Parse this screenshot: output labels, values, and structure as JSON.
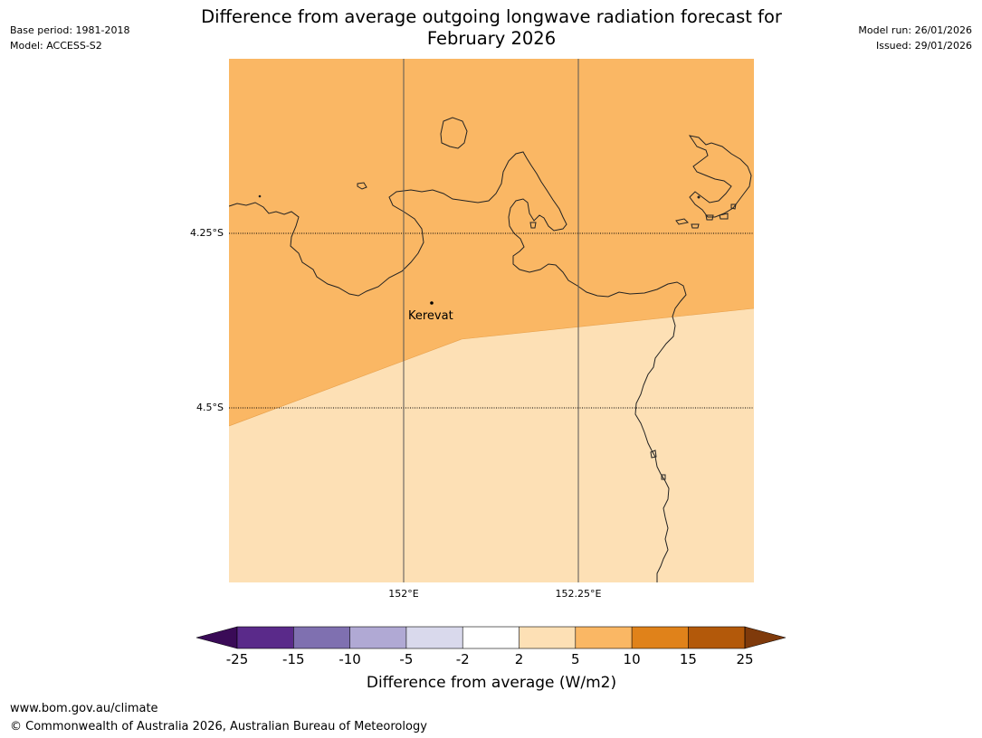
{
  "meta": {
    "base_period": "Base period: 1981-2018",
    "model": "Model: ACCESS-S2",
    "model_run": "Model run: 26/01/2026",
    "issued": "Issued: 29/01/2026"
  },
  "title": {
    "line1": "Difference from average outgoing longwave radiation forecast for",
    "line2": "February 2026"
  },
  "map": {
    "lat_labels": [
      "4.25°S",
      "4.5°S"
    ],
    "lon_labels": [
      "152°E",
      "152.25°E"
    ],
    "place": "Kerevat",
    "colors": {
      "band_10_high": "#fab764",
      "band_2_5": "#fde0b5",
      "coast": "#222222"
    }
  },
  "colorbar": {
    "title": "Difference from average (W/m2)",
    "ticks": [
      "-25",
      "-15",
      "-10",
      "-5",
      "-2",
      "2",
      "5",
      "10",
      "15",
      "25"
    ],
    "colors": [
      "#3a0b57",
      "#5a2a8a",
      "#7f70b0",
      "#b0a9d4",
      "#d9d9ec",
      "#ffffff",
      "#fde0b5",
      "#fab764",
      "#e0821a",
      "#b3590a",
      "#7f3a0b"
    ]
  },
  "footer": {
    "url": "www.bom.gov.au/climate",
    "copyright": "© Commonwealth of Australia 2026, Australian Bureau of Meteorology"
  }
}
